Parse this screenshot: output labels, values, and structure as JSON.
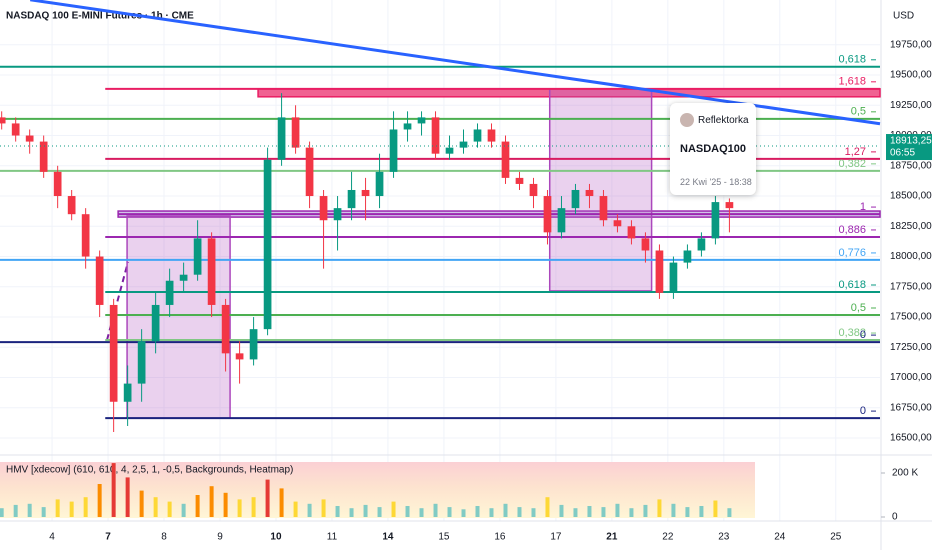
{
  "chart_data": {
    "type": "candlestick",
    "title": "NASDAQ 100 E-MINI Futures · 1h · CME",
    "currency": "USD",
    "x": [
      -0.9,
      -0.65,
      -0.4,
      -0.15,
      0.1,
      0.35,
      0.6,
      0.85,
      1.1,
      1.35,
      1.6,
      1.85,
      2.1,
      2.35,
      2.6,
      2.85,
      3.1,
      3.35,
      3.6,
      3.85,
      4.1,
      4.35,
      4.6,
      4.85,
      5.1,
      5.35,
      5.6,
      5.85,
      6.1,
      6.35,
      6.6,
      6.85,
      7.1,
      7.35,
      7.6,
      7.85,
      8.1,
      8.35,
      8.6,
      8.85,
      9.1,
      9.35,
      9.6,
      9.85,
      10.1,
      10.35,
      10.6,
      10.85,
      11.1,
      11.35,
      11.6,
      11.85,
      12.1
    ],
    "open": [
      19150,
      19100,
      19000,
      18950,
      18700,
      18500,
      18350,
      18000,
      17600,
      16800,
      16950,
      17300,
      17600,
      17800,
      17850,
      18150,
      17600,
      17200,
      17150,
      17400,
      18800,
      19150,
      18900,
      18500,
      18300,
      18400,
      18550,
      18500,
      18700,
      19050,
      19100,
      19150,
      18850,
      18900,
      18950,
      19050,
      18950,
      18650,
      18600,
      18500,
      18200,
      18400,
      18550,
      18500,
      18300,
      18250,
      18150,
      18050,
      17700,
      17950,
      18050,
      18150,
      18450
    ],
    "high": [
      19200,
      19150,
      19050,
      19000,
      18750,
      18550,
      18400,
      18050,
      17650,
      17100,
      17400,
      17700,
      17900,
      17950,
      18300,
      18200,
      17650,
      17300,
      17500,
      18900,
      19350,
      19250,
      18950,
      18550,
      18500,
      18700,
      18650,
      18850,
      19200,
      19200,
      19200,
      19200,
      19000,
      19050,
      19100,
      19100,
      19000,
      18700,
      18650,
      18550,
      18500,
      18600,
      18600,
      18550,
      18350,
      18300,
      18200,
      18100,
      18000,
      18100,
      18200,
      18500,
      18480
    ],
    "low": [
      19050,
      18950,
      18850,
      18650,
      18400,
      18300,
      17900,
      17500,
      16550,
      16600,
      16800,
      17200,
      17500,
      17700,
      17800,
      17500,
      17050,
      16950,
      17100,
      17350,
      18750,
      18850,
      18400,
      17900,
      18050,
      18300,
      18300,
      18400,
      18650,
      18950,
      19000,
      18800,
      18800,
      18850,
      18900,
      18900,
      18600,
      18550,
      18400,
      18100,
      18150,
      18350,
      18400,
      18250,
      18200,
      18100,
      17950,
      17650,
      17650,
      17900,
      18000,
      18100,
      18200
    ],
    "close": [
      19100,
      19000,
      18950,
      18700,
      18500,
      18350,
      18000,
      17600,
      16800,
      16950,
      17300,
      17600,
      17800,
      17850,
      18150,
      17600,
      17200,
      17150,
      17400,
      18800,
      19150,
      18900,
      18500,
      18300,
      18400,
      18550,
      18500,
      18700,
      19050,
      19100,
      19150,
      18850,
      18900,
      18950,
      19050,
      18950,
      18650,
      18600,
      18500,
      18200,
      18400,
      18550,
      18500,
      18300,
      18250,
      18150,
      18050,
      17700,
      17950,
      18050,
      18150,
      18450,
      18400
    ],
    "up_color": "#089981",
    "down_color": "#f23645",
    "xlim": [
      -0.93,
      14.79
    ],
    "xticks": [
      {
        "value": 0,
        "label": "4"
      },
      {
        "value": 1,
        "label": "7",
        "bold": true
      },
      {
        "value": 2,
        "label": "8"
      },
      {
        "value": 3,
        "label": "9"
      },
      {
        "value": 4,
        "label": "10",
        "bold": true
      },
      {
        "value": 5,
        "label": "11"
      },
      {
        "value": 6,
        "label": "14",
        "bold": true
      },
      {
        "value": 7,
        "label": "15"
      },
      {
        "value": 8,
        "label": "16"
      },
      {
        "value": 9,
        "label": "17"
      },
      {
        "value": 10,
        "label": "21",
        "bold": true
      },
      {
        "value": 11,
        "label": "22"
      },
      {
        "value": 12,
        "label": "23"
      },
      {
        "value": 13,
        "label": "24"
      },
      {
        "value": 14,
        "label": "25"
      }
    ],
    "ylim": [
      16360,
      20120
    ],
    "yticks": [
      {
        "value": 19750,
        "label": "19750,00"
      },
      {
        "value": 19500,
        "label": "19500,00"
      },
      {
        "value": 19250,
        "label": "19250,00"
      },
      {
        "value": 19000,
        "label": "19000,00"
      },
      {
        "value": 18750,
        "label": "18750,00"
      },
      {
        "value": 18500,
        "label": "18500,00"
      },
      {
        "value": 18250,
        "label": "18250,00"
      },
      {
        "value": 18000,
        "label": "18000,00"
      },
      {
        "value": 17750,
        "label": "17750,00"
      },
      {
        "value": 17500,
        "label": "17500,00"
      },
      {
        "value": 17250,
        "label": "17250,00"
      },
      {
        "value": 17000,
        "label": "17000,00"
      },
      {
        "value": 16750,
        "label": "16750,00"
      },
      {
        "value": 16500,
        "label": "16500,00"
      }
    ],
    "grid": true,
    "last_price": {
      "value": 18913.25,
      "label": "18913,25",
      "time": "06:55",
      "color": "#089981"
    },
    "rectangles": [
      {
        "x": [
          3.68,
          14.79
        ],
        "y": [
          19386,
          19320
        ],
        "fill": "#f06292",
        "stroke": "#e91e63"
      },
      {
        "x": [
          1.18,
          14.79
        ],
        "y": [
          18376,
          18326
        ],
        "fill": "#d1c4e9",
        "stroke": "#9c27b0"
      },
      {
        "x": [
          1.34,
          3.18
        ],
        "y": [
          18335,
          16665
        ],
        "fill": "rgba(186,104,200,0.3)",
        "stroke": "#ab47bc"
      },
      {
        "x": [
          8.89,
          10.71
        ],
        "y": [
          19386,
          17716
        ],
        "fill": "rgba(186,104,200,0.3)",
        "stroke": "#ab47bc"
      }
    ],
    "levels": [
      {
        "label": "0,618",
        "value": 19568,
        "color": "#089981"
      },
      {
        "label": "1,618",
        "value": 19386,
        "color": "#e91e63",
        "from": 0.95
      },
      {
        "label": "0,5",
        "value": 19138,
        "color": "#4caf50"
      },
      {
        "label": "1,27",
        "value": 18807,
        "color": "#d81b60",
        "from": 0.95
      },
      {
        "label": "0,382",
        "value": 18708,
        "color": "#81c784"
      },
      {
        "label": "1",
        "value": 18351,
        "color": "#9c27b0",
        "from": 1.18
      },
      {
        "label": "0,886",
        "value": 18162,
        "color": "#9c27b0",
        "from": 0.95
      },
      {
        "label": "0,776",
        "value": 17972,
        "color": "#42a5f5"
      },
      {
        "label": "0,618",
        "value": 17707,
        "color": "#089981",
        "from": 0.95
      },
      {
        "label": "0,5",
        "value": 17517,
        "color": "#4caf50",
        "from": 0.95
      },
      {
        "label": "0,382",
        "value": 17310,
        "color": "#81c784",
        "from": 0.95
      },
      {
        "label": "0",
        "value": 17293,
        "color": "#1a237e"
      },
      {
        "label": "0",
        "value": 16665,
        "color": "#1a237e",
        "from": 0.95
      }
    ],
    "trendlines": [
      {
        "x": [
          -0.39,
          14.79
        ],
        "y": [
          20122,
          19097
        ],
        "color": "#2962ff"
      }
    ],
    "annotation": {
      "author": "Reflektorka",
      "symbol": "NASDAQ100",
      "date": "22 Kwi '25 - 18:38"
    },
    "volume": {
      "title": "HMV [xdecow] (610, 610, 4, 2,5, 1, -0,5, Backgrounds, Heatmap)",
      "values": [
        40000,
        55000,
        60000,
        45000,
        80000,
        70000,
        90000,
        150000,
        245000,
        180000,
        120000,
        90000,
        70000,
        60000,
        100000,
        140000,
        110000,
        80000,
        90000,
        170000,
        130000,
        70000,
        60000,
        80000,
        50000,
        40000,
        55000,
        45000,
        70000,
        50000,
        40000,
        60000,
        45000,
        35000,
        50000,
        40000,
        60000,
        45000,
        40000,
        90000,
        55000,
        40000,
        50000,
        45000,
        60000,
        40000,
        55000,
        80000,
        60000,
        45000,
        50000,
        75000,
        40000
      ],
      "ylim": [
        0,
        250000
      ],
      "yticks": [
        0,
        {
          "value": 200000,
          "label": "200 K"
        }
      ]
    }
  }
}
